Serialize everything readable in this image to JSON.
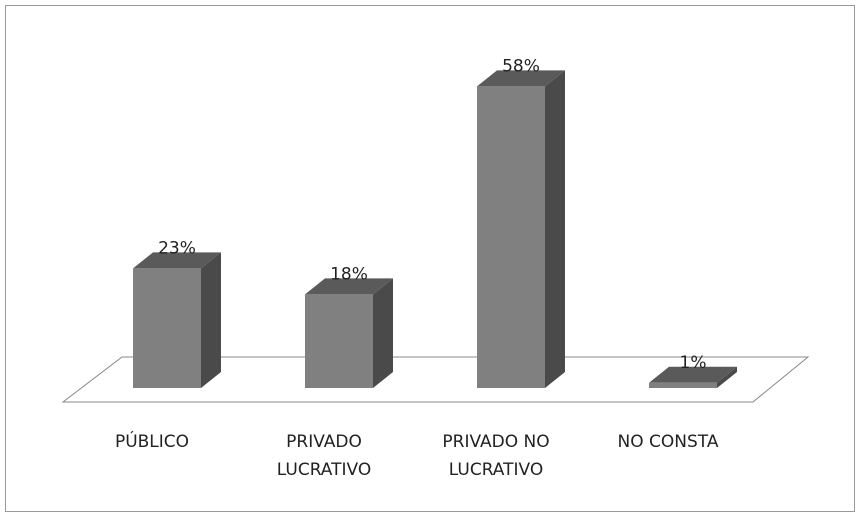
{
  "chart_data": {
    "type": "bar3d",
    "categories": [
      "PÚBLICO",
      "PRIVADO\nLUCRATIVO",
      "PRIVADO NO\nLUCRATIVO",
      "NO CONSTA"
    ],
    "values": [
      23,
      18,
      58,
      1
    ],
    "value_labels": [
      "23%",
      "18%",
      "58%",
      "1%"
    ],
    "color": "#808080"
  }
}
